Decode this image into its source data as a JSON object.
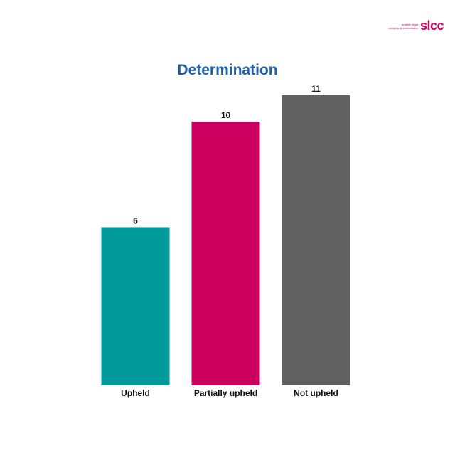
{
  "logo": {
    "line1": "scottish legal",
    "line2": "complaints commission",
    "mark": "slcc"
  },
  "chart_data": {
    "type": "bar",
    "title": "Determination",
    "categories": [
      "Upheld",
      "Partially upheld",
      "Not upheld"
    ],
    "values": [
      6,
      10,
      11
    ],
    "colors": [
      "#00999a",
      "#cc005f",
      "#606062"
    ],
    "ylim": [
      0,
      11
    ],
    "grid": false,
    "legend": "none",
    "xlabel": "",
    "ylabel": ""
  }
}
